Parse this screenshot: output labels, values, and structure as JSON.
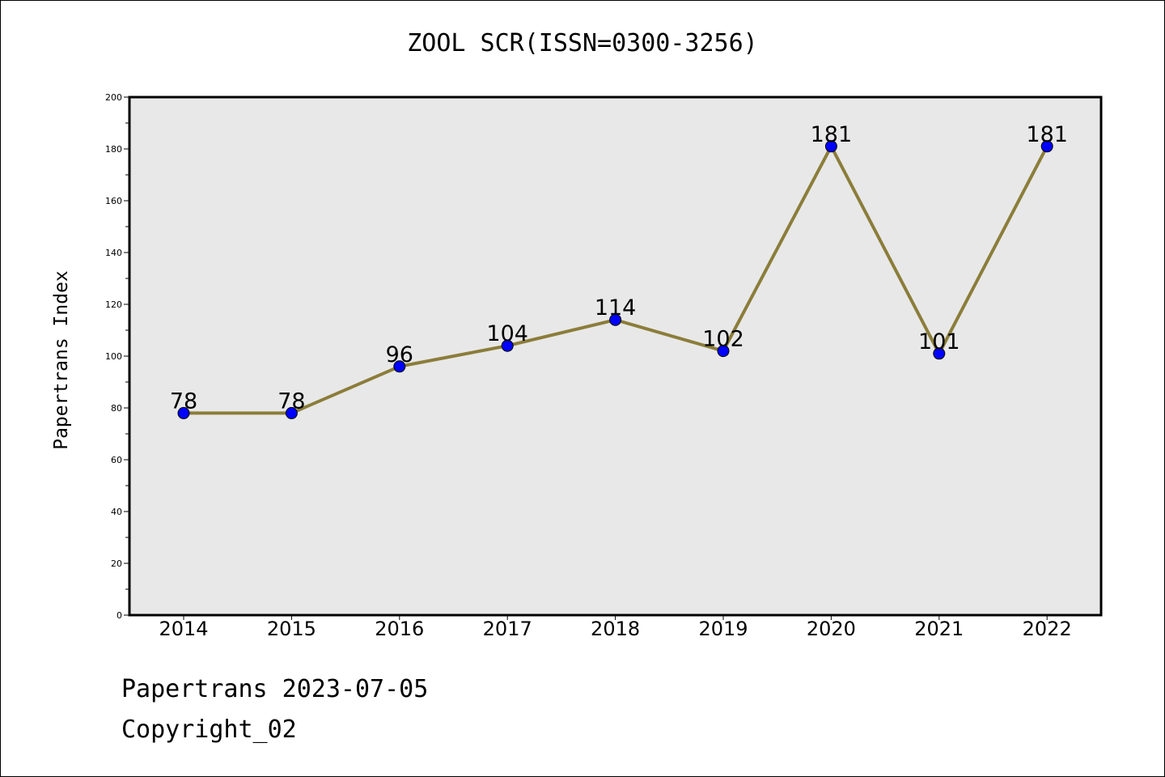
{
  "chart_data": {
    "type": "line",
    "title": "ZOOL SCR(ISSN=0300-3256)",
    "xlabel": "",
    "ylabel": "Papertrans Index",
    "categories": [
      "2014",
      "2015",
      "2016",
      "2017",
      "2018",
      "2019",
      "2020",
      "2021",
      "2022"
    ],
    "values": [
      78,
      78,
      96,
      104,
      114,
      102,
      181,
      101,
      181
    ],
    "ylim": [
      0,
      200
    ],
    "yticks": [
      0,
      20,
      40,
      60,
      80,
      100,
      120,
      140,
      160,
      180,
      200
    ],
    "grid": false,
    "legend": "none",
    "colors": {
      "line": "#8b7d3a",
      "marker": "#0000ff",
      "plot_background": "#e8e8e8"
    }
  },
  "footer": {
    "line1": "Papertrans 2023-07-05",
    "line2": "Copyright_02"
  }
}
